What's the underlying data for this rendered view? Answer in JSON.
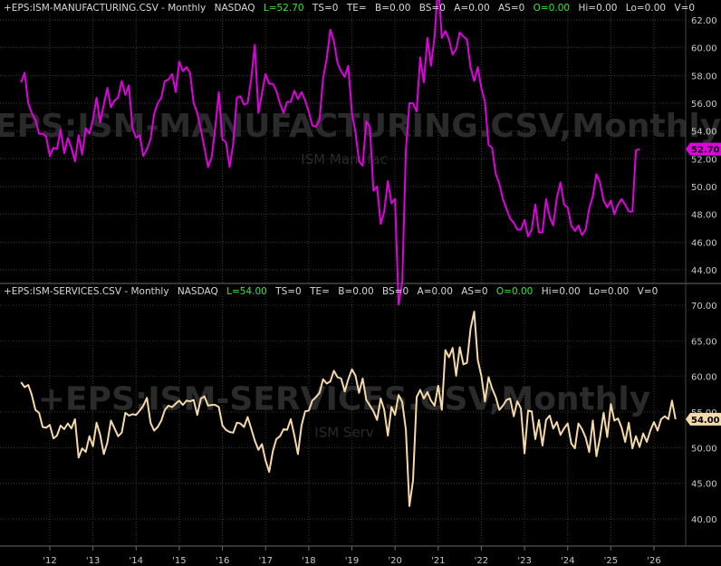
{
  "colors": {
    "background": "#000000",
    "grid": "#3a3a3a",
    "manufacturing_line": "#e000e0",
    "services_line": "#f5d9a8",
    "header_text": "#d8d8d8",
    "header_green": "#39e639"
  },
  "panels": [
    {
      "header": {
        "symbol": "+EPS:ISM-MANUFACTURING.CSV - Monthly",
        "exchange": "NASDAQ",
        "last": "L=52.70",
        "ts": "TS=0",
        "te": "TE=",
        "b": "B=0.00",
        "bs": "BS=0",
        "a": "A=0.00",
        "as": "AS=0",
        "open": "O=0.00",
        "hi": "Hi=0.00",
        "lo": "Lo=0.00",
        "v": "V=0"
      },
      "watermark": "+EPS:ISM-MANUFACTURING.CSV,Monthly",
      "watermark_sub": "ISM Manufac",
      "last_label": "52.70"
    },
    {
      "header": {
        "symbol": "+EPS:ISM-SERVICES.CSV - Monthly",
        "exchange": "NASDAQ",
        "last": "L=54.00",
        "ts": "TS=0",
        "te": "TE=",
        "b": "B=0.00",
        "bs": "BS=0",
        "a": "A=0.00",
        "as": "AS=0",
        "open": "O=0.00",
        "hi": "Hi=0.00",
        "lo": "Lo=0.00",
        "v": "V=0"
      },
      "watermark": "+EPS:ISM-SERVICES.CSV,Monthly",
      "watermark_sub": "ISM Serv",
      "last_label": "54.00"
    }
  ],
  "chart_data": [
    {
      "type": "line",
      "series_key": "manufacturing",
      "x_start": "2011-05",
      "x_end": "2026-01",
      "x_ticks": [
        "'12",
        "'13",
        "'14",
        "'15",
        "'16",
        "'17",
        "'18",
        "'19",
        "'20",
        "'21",
        "'22",
        "'23",
        "'24",
        "'25",
        "'26"
      ],
      "y_ticks": [
        "44.00",
        "46.00",
        "48.00",
        "50.00",
        "52.00",
        "54.00",
        "56.00",
        "58.00",
        "60.00",
        "62.00"
      ],
      "ylim": [
        43,
        63
      ],
      "grid": true,
      "last_value": 52.7,
      "values": [
        57.5,
        58.2,
        56.0,
        55.3,
        54.8,
        53.8,
        53.8,
        53.6,
        52.2,
        52.8,
        52.7,
        54.1,
        52.4,
        53.5,
        52.8,
        51.8,
        53.7,
        52.3,
        54.2,
        53.8,
        54.8,
        56.4,
        54.6,
        55.9,
        57.1,
        55.7,
        56.2,
        56.4,
        57.6,
        56.6,
        57.3,
        54.2,
        53.5,
        53.7,
        52.2,
        52.7,
        53.4,
        55.2,
        56.0,
        56.4,
        57.6,
        57.7,
        58.1,
        56.8,
        59.0,
        58.3,
        58.6,
        58.2,
        56.0,
        55.3,
        54.1,
        52.8,
        51.4,
        52.1,
        54.2,
        56.8,
        53.4,
        53.2,
        51.4,
        53.1,
        56.4,
        56.5,
        55.9,
        56.0,
        57.7,
        60.2,
        55.3,
        56.7,
        58.1,
        57.4,
        57.4,
        56.9,
        56.0,
        55.3,
        56.1,
        56.1,
        56.9,
        56.3,
        56.8,
        56.2,
        55.4,
        54.4,
        54.3,
        54.8,
        57.8,
        59.2,
        61.3,
        60.5,
        58.9,
        58.3,
        57.9,
        58.7,
        55.3,
        53.9,
        51.8,
        51.5,
        54.7,
        54.3,
        49.7,
        50.0,
        47.3,
        48.2,
        50.4,
        48.8,
        49.1,
        41.5,
        43.1,
        52.6,
        56.0,
        56.0,
        55.4,
        59.3,
        57.5,
        60.7,
        58.7,
        60.8,
        64.7,
        60.7,
        61.2,
        60.6,
        59.5,
        59.9,
        61.1,
        60.8,
        60.6,
        58.6,
        57.6,
        58.6,
        57.1,
        56.1,
        53.0,
        52.8,
        50.9,
        50.2,
        49.1,
        48.4,
        47.7,
        47.4,
        46.9,
        46.9,
        47.6,
        46.4,
        46.9,
        48.7,
        46.7,
        46.7,
        49.1,
        47.8,
        47.2,
        49.2,
        50.3,
        48.7,
        48.5,
        47.2,
        46.8,
        47.2,
        46.5,
        46.9,
        48.4,
        49.3,
        50.9,
        50.3,
        49.0,
        48.5,
        49.0,
        48.0,
        48.7,
        49.1,
        48.7,
        48.2,
        48.2,
        52.6,
        52.7
      ]
    },
    {
      "type": "line",
      "series_key": "services",
      "x_start": "2011-05",
      "x_end": "2026-01",
      "x_ticks": [
        "'12",
        "'13",
        "'14",
        "'15",
        "'16",
        "'17",
        "'18",
        "'19",
        "'20",
        "'21",
        "'22",
        "'23",
        "'24",
        "'25",
        "'26"
      ],
      "y_ticks": [
        "40.00",
        "45.00",
        "50.00",
        "55.00",
        "60.00",
        "65.00",
        "70.00"
      ],
      "ylim": [
        38,
        71
      ],
      "grid": true,
      "last_value": 54.0,
      "values": [
        59.2,
        58.5,
        58.8,
        57.4,
        55.3,
        54.9,
        52.9,
        52.8,
        53.2,
        51.3,
        51.7,
        53.1,
        52.6,
        53.4,
        52.7,
        54.0,
        48.6,
        49.9,
        49.4,
        51.6,
        50.2,
        53.5,
        51.8,
        49.1,
        50.7,
        53.8,
        52.7,
        51.6,
        52.1,
        54.9,
        54.5,
        54.7,
        54.6,
        55.2,
        55.9,
        57.0,
        53.5,
        52.4,
        52.9,
        53.8,
        55.3,
        55.9,
        55.7,
        56.2,
        56.6,
        56.0,
        56.6,
        56.5,
        56.7,
        54.6,
        56.9,
        57.2,
        55.9,
        56.0,
        56.0,
        55.7,
        53.1,
        52.5,
        52.2,
        52.1,
        53.5,
        53.4,
        52.9,
        54.3,
        52.7,
        51.0,
        49.7,
        50.5,
        48.2,
        46.6,
        49.5,
        51.2,
        51.6,
        52.6,
        52.5,
        54.0,
        51.7,
        49.1,
        53.1,
        55.1,
        55.2,
        56.6,
        57.1,
        57.7,
        59.6,
        59.0,
        59.3,
        60.8,
        59.9,
        59.7,
        57.9,
        59.6,
        61.0,
        60.1,
        57.7,
        59.7,
        56.7,
        55.9,
        55.1,
        53.9,
        56.9,
        55.3,
        51.7,
        55.7,
        54.6,
        57.4,
        56.4,
        52.5,
        41.8,
        45.4,
        57.1,
        58.1,
        56.9,
        57.8,
        56.6,
        55.9,
        58.7,
        55.3,
        63.7,
        62.7,
        64.0,
        60.1,
        64.1,
        61.7,
        61.9,
        66.7,
        69.1,
        62.3,
        60.1,
        56.5,
        59.9,
        58.3,
        57.1,
        55.3,
        55.9,
        56.7,
        56.9,
        54.4,
        56.5,
        55.5,
        49.2,
        55.2,
        55.1,
        51.2,
        53.9,
        50.3,
        53.9,
        54.5,
        52.7,
        53.6,
        51.8,
        52.7,
        53.4,
        50.6,
        49.9,
        53.4,
        52.6,
        51.4,
        49.4,
        53.8,
        48.8,
        51.4,
        54.9,
        51.5,
        56.1,
        53.8,
        54.1,
        52.8,
        50.8,
        53.5,
        49.9,
        51.6,
        50.1,
        52.0,
        50.8,
        52.4,
        53.6,
        52.4,
        54.0,
        54.4,
        54.0,
        56.6,
        54.0
      ]
    }
  ]
}
